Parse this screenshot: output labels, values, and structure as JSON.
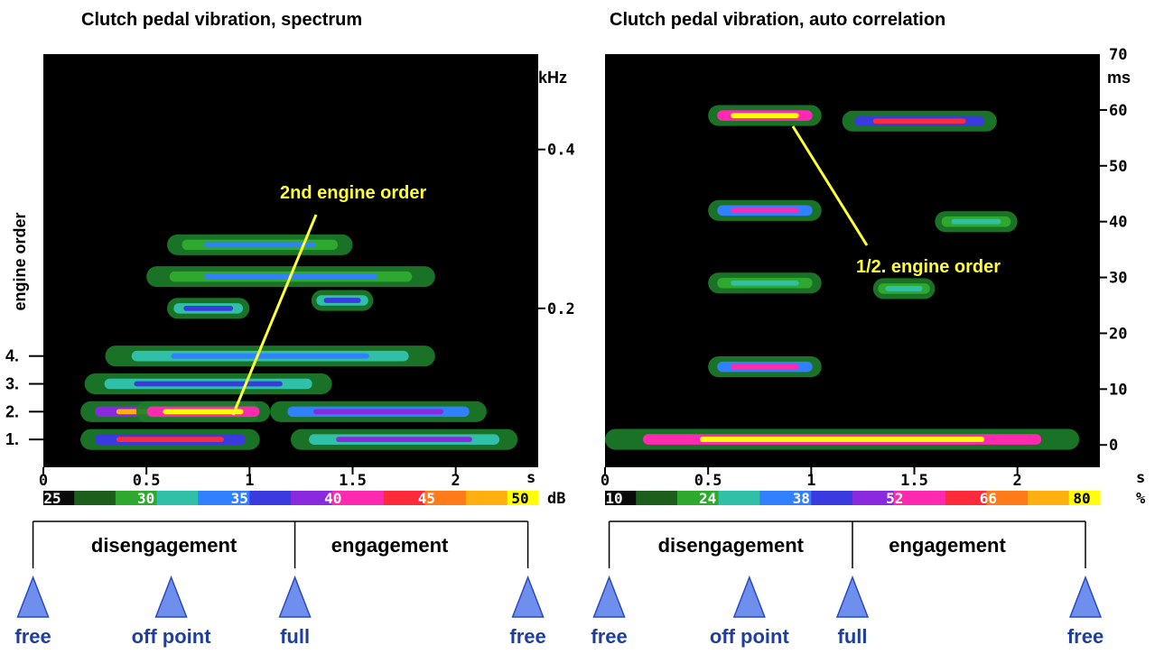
{
  "chart_data": [
    {
      "type": "heatmap",
      "title": "Clutch pedal vibration, spectrum",
      "x_unit": "s",
      "x_ticks": [
        "0",
        "0.5",
        "1",
        "1.5",
        "2"
      ],
      "x_tick_values": [
        0,
        0.5,
        1,
        1.5,
        2
      ],
      "xlim": [
        0,
        2.4
      ],
      "y_right_unit": "kHz",
      "y_right_ticks": [
        "0.4",
        "0.2"
      ],
      "y_right_tick_values": [
        0.4,
        0.2
      ],
      "ylim": [
        0,
        0.52
      ],
      "y_left_label": "engine order",
      "y_left_ticks": [
        "1.",
        "2.",
        "3.",
        "4."
      ],
      "y_left_tick_values": [
        0.035,
        0.07,
        0.105,
        0.14
      ],
      "colorbar_unit": "dB",
      "colorbar_ticks": [
        "25",
        "30",
        "35",
        "40",
        "45",
        "50"
      ],
      "annotation": "2nd engine order",
      "annotation_target": {
        "x": 0.95,
        "y": 0.07
      },
      "phases": [
        "disengagement",
        "engagement"
      ],
      "events": [
        {
          "label": "free",
          "t": -0.05
        },
        {
          "label": "off point",
          "t": 0.62
        },
        {
          "label": "full",
          "t": 1.22
        },
        {
          "label": "free",
          "t": 2.35
        }
      ],
      "blobs": [
        {
          "x0": 0.18,
          "x1": 1.05,
          "y": 0.07,
          "v": 0.95
        },
        {
          "x0": 0.45,
          "x1": 1.1,
          "y": 0.07,
          "v": 1.0
        },
        {
          "x0": 0.18,
          "x1": 1.05,
          "y": 0.035,
          "v": 0.7
        },
        {
          "x0": 1.1,
          "x1": 2.15,
          "y": 0.07,
          "v": 0.55
        },
        {
          "x0": 1.2,
          "x1": 2.3,
          "y": 0.035,
          "v": 0.5
        },
        {
          "x0": 0.2,
          "x1": 1.4,
          "y": 0.105,
          "v": 0.45
        },
        {
          "x0": 0.3,
          "x1": 1.9,
          "y": 0.14,
          "v": 0.38
        },
        {
          "x0": 0.6,
          "x1": 1.0,
          "y": 0.2,
          "v": 0.45
        },
        {
          "x0": 1.3,
          "x1": 1.6,
          "y": 0.21,
          "v": 0.45
        },
        {
          "x0": 0.5,
          "x1": 1.9,
          "y": 0.24,
          "v": 0.35
        },
        {
          "x0": 0.6,
          "x1": 1.5,
          "y": 0.28,
          "v": 0.32
        }
      ]
    },
    {
      "type": "heatmap",
      "title": "Clutch pedal vibration, auto correlation",
      "x_unit": "s",
      "x_ticks": [
        "0",
        "0.5",
        "1",
        "1.5",
        "2"
      ],
      "x_tick_values": [
        0,
        0.5,
        1,
        1.5,
        2
      ],
      "xlim": [
        0,
        2.4
      ],
      "y_unit": "ms",
      "y_ticks": [
        "70",
        "60",
        "50",
        "40",
        "30",
        "20",
        "10",
        "0"
      ],
      "y_tick_values": [
        70,
        60,
        50,
        40,
        30,
        20,
        10,
        0
      ],
      "ylim": [
        -4,
        70
      ],
      "colorbar_unit": "%",
      "colorbar_ticks": [
        "10",
        "24",
        "38",
        "52",
        "66",
        "80"
      ],
      "annotation": "1/2. engine order",
      "annotation_target": {
        "x": 0.92,
        "y": 57.5
      },
      "phases": [
        "disengagement",
        "engagement"
      ],
      "events": [
        {
          "label": "free",
          "t": 0.02
        },
        {
          "label": "off point",
          "t": 0.7
        },
        {
          "label": "full",
          "t": 1.2
        },
        {
          "label": "free",
          "t": 2.33
        }
      ],
      "blobs": [
        {
          "x0": 0.5,
          "x1": 1.05,
          "y": 59,
          "v": 1.0
        },
        {
          "x0": 1.15,
          "x1": 1.9,
          "y": 58,
          "v": 0.75
        },
        {
          "x0": 0.5,
          "x1": 1.05,
          "y": 42,
          "v": 0.6
        },
        {
          "x0": 0.5,
          "x1": 1.05,
          "y": 29,
          "v": 0.3
        },
        {
          "x0": 0.5,
          "x1": 1.05,
          "y": 14,
          "v": 0.65
        },
        {
          "x0": 1.3,
          "x1": 1.6,
          "y": 28,
          "v": 0.3
        },
        {
          "x0": 1.6,
          "x1": 2.0,
          "y": 40,
          "v": 0.25
        },
        {
          "x0": 0.0,
          "x1": 2.3,
          "y": 1,
          "v": 1.0
        }
      ]
    }
  ]
}
